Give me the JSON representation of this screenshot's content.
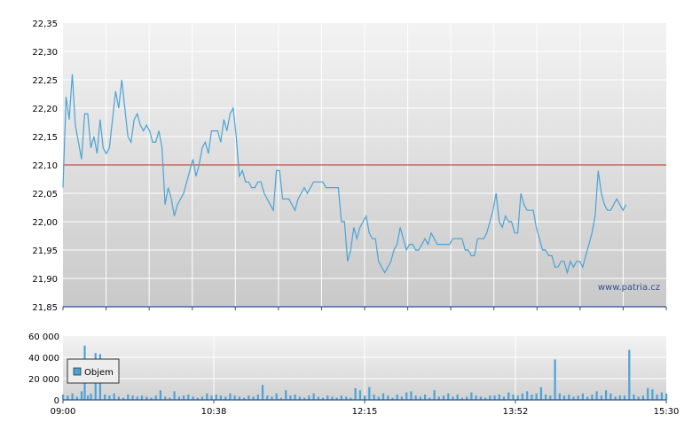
{
  "chart_data": [
    {
      "type": "line",
      "title": "",
      "xlabel": "",
      "ylabel": "",
      "ylim": [
        21.85,
        22.35
      ],
      "y_ticks": [
        "22,35",
        "22,30",
        "22,25",
        "22,20",
        "22,15",
        "22,10",
        "22,05",
        "22,00",
        "21,95",
        "21,90",
        "21,85"
      ],
      "reference_line": {
        "value": 22.1,
        "color": "#cc2222"
      },
      "series": [
        {
          "color": "#4aa3d6",
          "time_minutes": [
            0,
            2,
            4,
            6,
            8,
            10,
            12,
            14,
            16,
            18,
            20,
            22,
            24,
            26,
            28,
            30,
            32,
            34,
            36,
            38,
            40,
            42,
            44,
            46,
            48,
            50,
            52,
            54,
            56,
            58,
            60,
            62,
            64,
            66,
            68,
            70,
            72,
            74,
            76,
            78,
            80,
            82,
            84,
            86,
            88,
            90,
            92,
            94,
            96,
            98,
            100,
            102,
            104,
            106,
            108,
            110,
            112,
            114,
            116,
            118,
            120,
            122,
            124,
            126,
            128,
            130,
            132,
            134,
            136,
            138,
            140,
            142,
            144,
            146,
            148,
            150,
            152,
            154,
            156,
            158,
            160,
            162,
            164,
            166,
            168,
            170,
            172,
            174,
            176,
            178,
            180,
            182,
            184,
            186,
            188,
            190,
            192,
            194,
            196,
            198,
            200,
            202,
            204,
            206,
            208,
            210,
            212,
            214,
            216,
            218,
            220,
            222,
            224,
            226,
            228,
            230,
            232,
            234,
            236,
            238,
            240,
            242,
            244,
            246,
            248,
            250,
            252,
            254,
            256,
            258,
            260,
            262,
            264,
            266,
            268,
            270,
            272,
            274,
            276,
            278,
            280,
            282,
            284,
            286,
            288,
            290,
            292,
            294,
            296,
            298,
            300,
            302,
            304,
            306,
            308,
            310,
            312,
            314,
            316,
            318,
            320,
            322,
            324,
            326,
            328,
            330,
            332,
            334,
            336,
            338,
            340,
            342,
            344,
            346,
            348,
            350,
            352,
            354,
            356,
            358,
            360,
            362,
            364,
            366,
            368,
            370,
            372,
            374,
            376,
            378,
            380,
            382,
            384,
            386,
            388,
            390
          ],
          "values": [
            22.06,
            22.22,
            22.18,
            22.26,
            22.17,
            22.14,
            22.11,
            22.19,
            22.19,
            22.13,
            22.15,
            22.12,
            22.18,
            22.13,
            22.12,
            22.13,
            22.18,
            22.23,
            22.2,
            22.25,
            22.2,
            22.15,
            22.14,
            22.18,
            22.19,
            22.17,
            22.16,
            22.17,
            22.16,
            22.14,
            22.14,
            22.16,
            22.13,
            22.03,
            22.06,
            22.04,
            22.01,
            22.03,
            22.04,
            22.05,
            22.07,
            22.09,
            22.11,
            22.08,
            22.1,
            22.13,
            22.14,
            22.12,
            22.16,
            22.16,
            22.16,
            22.14,
            22.18,
            22.16,
            22.19,
            22.2,
            22.15,
            22.08,
            22.09,
            22.07,
            22.07,
            22.06,
            22.06,
            22.07,
            22.07,
            22.05,
            22.04,
            22.03,
            22.02,
            22.09,
            22.09,
            22.04,
            22.04,
            22.04,
            22.03,
            22.02,
            22.04,
            22.05,
            22.06,
            22.05,
            22.06,
            22.07,
            22.07,
            22.07,
            22.07,
            22.06,
            22.06,
            22.06,
            22.06,
            22.06,
            22.0,
            22.0,
            21.93,
            21.95,
            21.99,
            21.97,
            21.99,
            22.0,
            22.01,
            21.98,
            21.97,
            21.97,
            21.93,
            21.92,
            21.91,
            21.92,
            21.93,
            21.95,
            21.96,
            21.99,
            21.97,
            21.95,
            21.96,
            21.96,
            21.95,
            21.95,
            21.96,
            21.97,
            21.96,
            21.98,
            21.97,
            21.96,
            21.96,
            21.96,
            21.96,
            21.96,
            21.97,
            21.97,
            21.97,
            21.97,
            21.95,
            21.95,
            21.94,
            21.94,
            21.97,
            21.97,
            21.97,
            21.98,
            22.0,
            22.02,
            22.05,
            22.0,
            21.99,
            22.01,
            22.0,
            22.0,
            21.98,
            21.98,
            22.05,
            22.03,
            22.02,
            22.02,
            22.02,
            21.99,
            21.97,
            21.95,
            21.95,
            21.94,
            21.94,
            21.92,
            21.92,
            21.93,
            21.93,
            21.91,
            21.93,
            21.92,
            21.93,
            21.93,
            21.92,
            21.94,
            21.96,
            21.98,
            22.01,
            22.09,
            22.05,
            22.03,
            22.02,
            22.02,
            22.03,
            22.04,
            22.03,
            22.02,
            22.03
          ]
        }
      ],
      "x_ticks": [
        "09:00",
        "10:38",
        "12:15",
        "13:52",
        "15:30"
      ]
    },
    {
      "type": "bar",
      "title": "",
      "ylim": [
        0,
        60000
      ],
      "y_ticks": [
        "60 000",
        "40 000",
        "20 000",
        "0"
      ],
      "legend": {
        "label": "Objem",
        "placement": "top-left"
      },
      "series": [
        {
          "name": "Objem",
          "color": "#4aa3d6",
          "time_minutes": [
            0,
            3,
            6,
            9,
            12,
            14,
            16,
            18,
            21,
            24,
            27,
            30,
            33,
            36,
            39,
            42,
            45,
            48,
            51,
            54,
            57,
            60,
            63,
            66,
            69,
            72,
            75,
            78,
            81,
            84,
            87,
            90,
            93,
            96,
            99,
            102,
            105,
            108,
            111,
            114,
            117,
            120,
            123,
            126,
            129,
            132,
            135,
            138,
            141,
            144,
            147,
            150,
            153,
            156,
            159,
            162,
            165,
            168,
            171,
            174,
            177,
            180,
            183,
            186,
            189,
            192,
            195,
            198,
            201,
            204,
            207,
            210,
            213,
            216,
            219,
            222,
            225,
            228,
            231,
            234,
            237,
            240,
            243,
            246,
            249,
            252,
            255,
            258,
            261,
            264,
            267,
            270,
            273,
            276,
            279,
            282,
            285,
            288,
            291,
            294,
            297,
            300,
            303,
            306,
            309,
            312,
            315,
            318,
            321,
            324,
            327,
            330,
            333,
            336,
            339,
            342,
            345,
            348,
            351,
            354,
            357,
            360,
            363,
            366,
            369,
            372,
            375,
            378,
            381,
            384,
            387,
            390
          ],
          "values": [
            5000,
            4000,
            6000,
            3000,
            8000,
            51000,
            4000,
            6000,
            44000,
            43000,
            5000,
            4000,
            6000,
            3000,
            2000,
            5000,
            4000,
            3000,
            4000,
            3000,
            2000,
            4000,
            9000,
            3000,
            2000,
            8000,
            3000,
            4000,
            5000,
            3000,
            2000,
            3000,
            6000,
            4000,
            5000,
            4000,
            3000,
            6000,
            4000,
            3000,
            2000,
            4000,
            3000,
            5000,
            14000,
            4000,
            3000,
            6000,
            2000,
            9000,
            4000,
            5000,
            3000,
            2000,
            4000,
            6000,
            3000,
            2000,
            4000,
            3000,
            2000,
            4000,
            3000,
            2000,
            11000,
            9000,
            4000,
            12000,
            5000,
            3000,
            6000,
            4000,
            2000,
            5000,
            3000,
            7000,
            8000,
            4000,
            3000,
            5000,
            2000,
            9000,
            3000,
            4000,
            6000,
            3000,
            5000,
            2000,
            3000,
            7000,
            4000,
            3000,
            2000,
            4000,
            4000,
            5000,
            3000,
            7000,
            5000,
            4000,
            6000,
            8000,
            5000,
            6000,
            12000,
            5000,
            4000,
            38000,
            6000,
            4000,
            5000,
            3000,
            4000,
            6000,
            3000,
            5000,
            8000,
            4000,
            9000,
            6000,
            3000,
            4000,
            4000,
            47000,
            5000,
            3000,
            4000,
            11000,
            10000,
            5000,
            7000,
            6000
          ]
        }
      ],
      "x_ticks": [
        "09:00",
        "10:38",
        "12:15",
        "13:52",
        "15:30"
      ]
    }
  ],
  "watermark": "www.patria.cz"
}
